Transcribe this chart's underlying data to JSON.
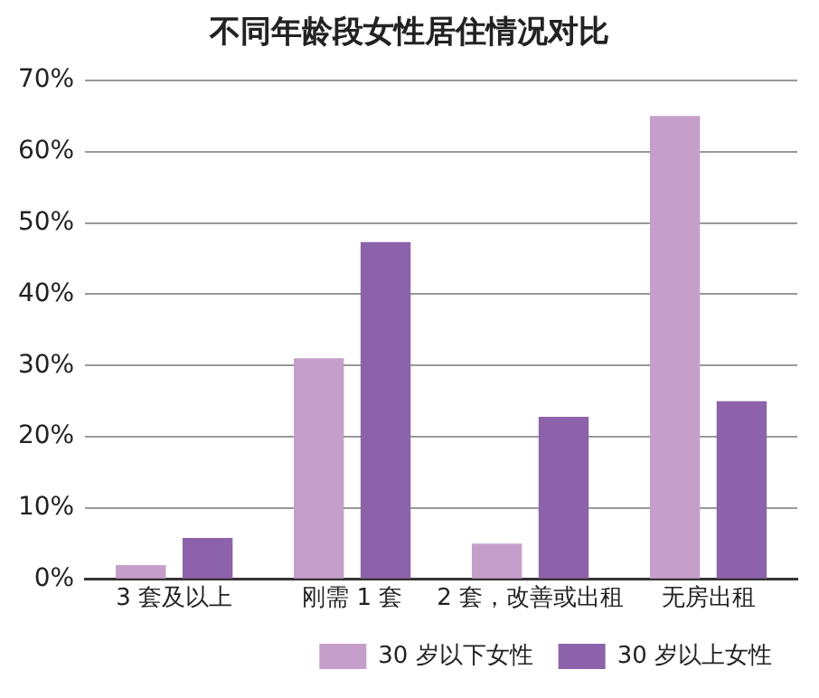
{
  "chart_data": {
    "type": "bar",
    "title": "不同年龄段女性居住情况对比",
    "categories": [
      "3 套及以上",
      "刚需 1 套",
      "2 套，改善或出租",
      "无房出租"
    ],
    "series": [
      {
        "name": "30 岁以下女性",
        "color": "#c59fc9",
        "values": [
          2,
          31,
          5,
          65
        ]
      },
      {
        "name": "30 岁以上女性",
        "color": "#8c62aa",
        "values": [
          5.8,
          47.3,
          22.8,
          25
        ]
      }
    ],
    "ylim": [
      0,
      70
    ],
    "yticks": [
      {
        "value": 0,
        "label": "0%"
      },
      {
        "value": 10,
        "label": "10%"
      },
      {
        "value": 20,
        "label": "20%"
      },
      {
        "value": 30,
        "label": "30%"
      },
      {
        "value": 40,
        "label": "40%"
      },
      {
        "value": 50,
        "label": "50%"
      },
      {
        "value": 60,
        "label": "60%"
      },
      {
        "value": 70,
        "label": "70%"
      }
    ],
    "grid": "y",
    "legend": "bottom right"
  }
}
